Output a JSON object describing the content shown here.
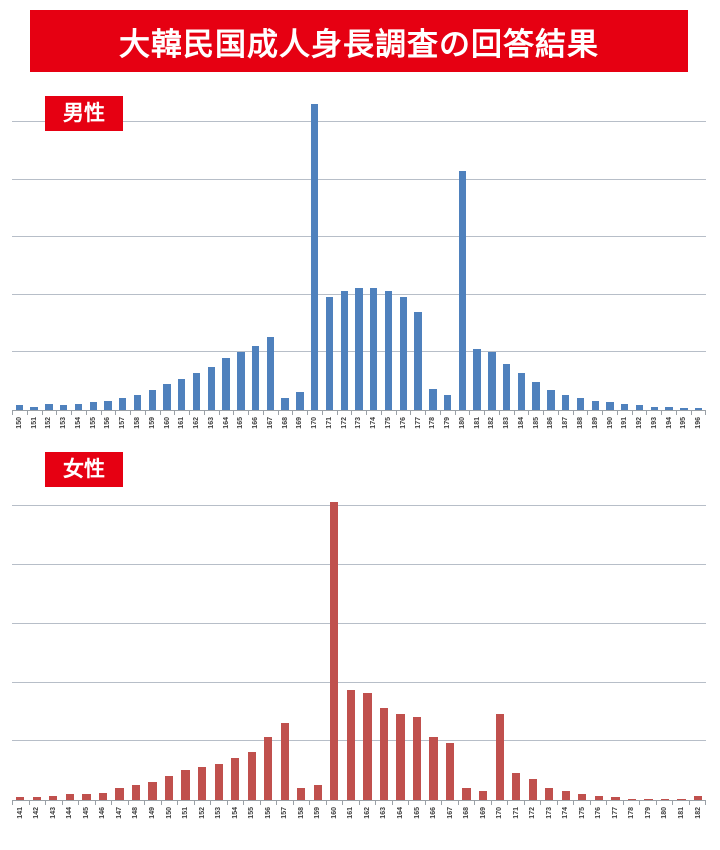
{
  "banner": {
    "title": "大韓民国成人身長調査の回答結果",
    "bg": "#e60012",
    "fg": "#ffffff"
  },
  "colors": {
    "banner_red": "#e60012",
    "male_bar": "#4f81bd",
    "female_bar": "#c0504d",
    "gridline": "#b7bec8",
    "axis": "#9aa0a6"
  },
  "chart_data": [
    {
      "type": "bar",
      "label": "男性",
      "title": "",
      "xlabel": "",
      "ylabel": "",
      "legend": "none",
      "grid": true,
      "gridlines": 5,
      "grid_step_pct": 18.8,
      "bar_color": "#4f81bd",
      "ylim": [
        0,
        100
      ],
      "values_unit": "percent_of_max_bar",
      "categories": [
        "150",
        "151",
        "152",
        "153",
        "154",
        "155",
        "156",
        "157",
        "158",
        "159",
        "160",
        "161",
        "162",
        "163",
        "164",
        "165",
        "166",
        "167",
        "168",
        "169",
        "170",
        "171",
        "172",
        "173",
        "174",
        "175",
        "176",
        "177",
        "178",
        "179",
        "180",
        "181",
        "182",
        "183",
        "184",
        "185",
        "186",
        "187",
        "188",
        "189",
        "190",
        "191",
        "192",
        "193",
        "194",
        "195",
        "196"
      ],
      "values": [
        1.5,
        1,
        2,
        1.5,
        2,
        2.5,
        3,
        4,
        5,
        6.5,
        8.5,
        10,
        12,
        14,
        17,
        19,
        21,
        24,
        4,
        6,
        100,
        37,
        39,
        40,
        40,
        39,
        37,
        32,
        7,
        5,
        78,
        20,
        19,
        15,
        12,
        9,
        6.5,
        5,
        4,
        3,
        2.5,
        2,
        1.5,
        1,
        1,
        0.5,
        0.5
      ]
    },
    {
      "type": "bar",
      "label": "女性",
      "title": "",
      "xlabel": "",
      "ylabel": "",
      "legend": "none",
      "grid": true,
      "gridlines": 5,
      "grid_step_pct": 19.7,
      "bar_color": "#c0504d",
      "ylim": [
        0,
        100
      ],
      "values_unit": "percent_of_max_bar",
      "categories": [
        "141",
        "142",
        "143",
        "144",
        "145",
        "146",
        "147",
        "148",
        "149",
        "150",
        "151",
        "152",
        "153",
        "154",
        "155",
        "156",
        "157",
        "158",
        "159",
        "160",
        "161",
        "162",
        "163",
        "164",
        "165",
        "166",
        "167",
        "168",
        "169",
        "170",
        "171",
        "172",
        "173",
        "174",
        "175",
        "176",
        "177",
        "178",
        "179",
        "180",
        "181",
        "182"
      ],
      "values": [
        1,
        1,
        1.5,
        2,
        2,
        2.5,
        4,
        5,
        6,
        8,
        10,
        11,
        12,
        14,
        16,
        21,
        26,
        4,
        5,
        100,
        37,
        36,
        31,
        29,
        28,
        21,
        19,
        4,
        3,
        29,
        9,
        7,
        4,
        3,
        2,
        1.5,
        1,
        0.5,
        0.5,
        0.5,
        0.5,
        1.5
      ]
    }
  ]
}
